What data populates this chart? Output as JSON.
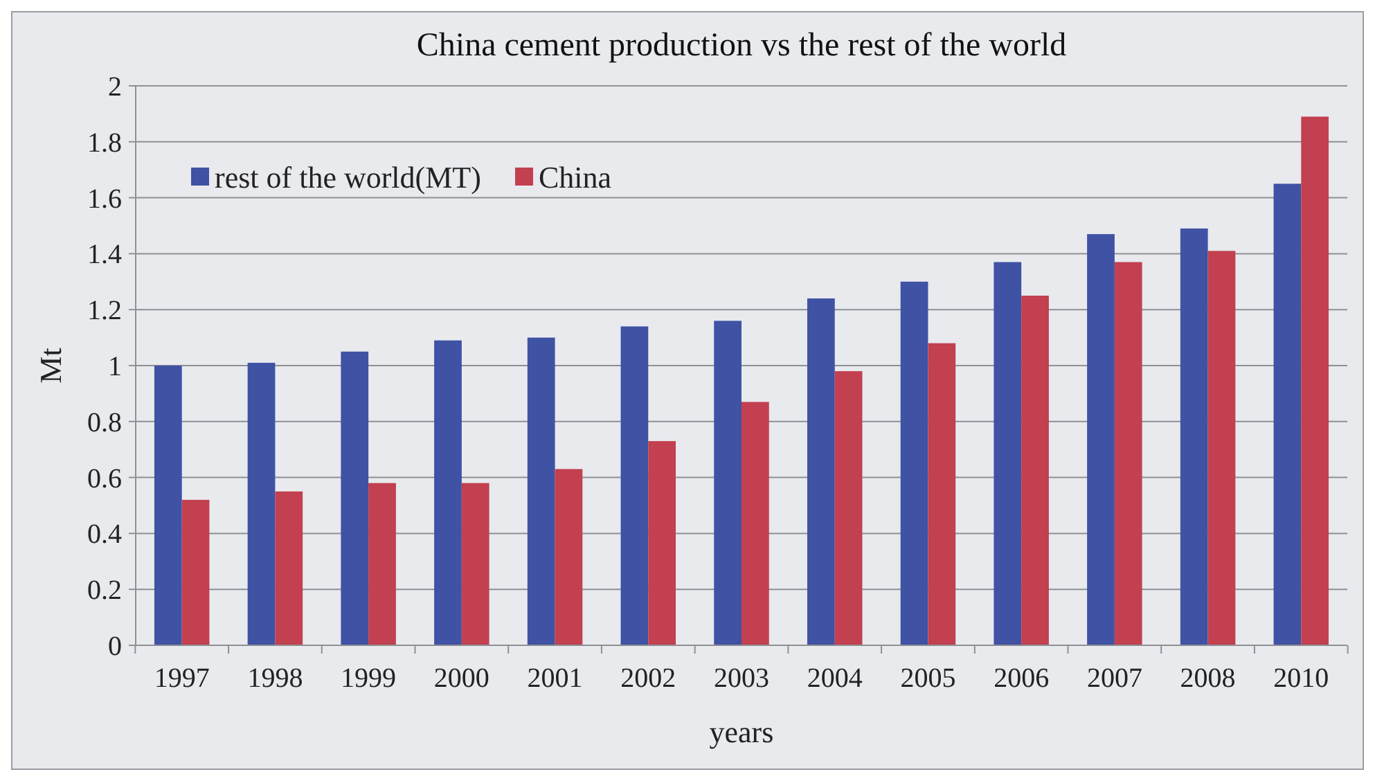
{
  "chart_data": {
    "type": "bar",
    "title": "China cement production vs the rest of the world",
    "xlabel": "years",
    "ylabel": "Mt",
    "categories": [
      "1997",
      "1998",
      "1999",
      "2000",
      "2001",
      "2002",
      "2003",
      "2004",
      "2005",
      "2006",
      "2007",
      "2008",
      "2010"
    ],
    "series": [
      {
        "name": "rest of the world(MT)",
        "color": "#3f52a4",
        "values": [
          1.0,
          1.01,
          1.05,
          1.09,
          1.1,
          1.14,
          1.16,
          1.24,
          1.3,
          1.37,
          1.47,
          1.49,
          1.65
        ]
      },
      {
        "name": "China",
        "color": "#c2404f",
        "values": [
          0.52,
          0.55,
          0.58,
          0.58,
          0.63,
          0.73,
          0.87,
          0.98,
          1.08,
          1.25,
          1.37,
          1.41,
          1.89
        ]
      }
    ],
    "ylim": [
      0,
      2
    ],
    "yticks": [
      0,
      0.2,
      0.4,
      0.6,
      0.8,
      1,
      1.2,
      1.4,
      1.6,
      1.8,
      2
    ],
    "grid": "y",
    "legend": "top left"
  }
}
